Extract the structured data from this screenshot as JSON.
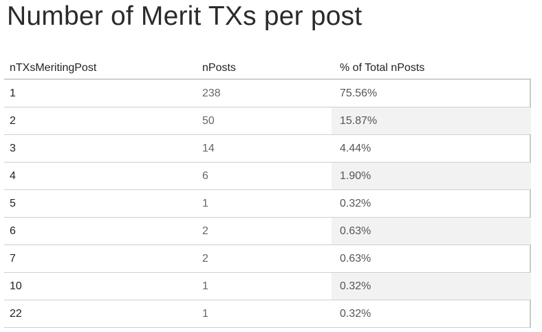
{
  "title": "Number of Merit TXs per post",
  "chart_data": {
    "type": "table",
    "title": "Number of Merit TXs per post",
    "columns": [
      "nTXsMeritingPost",
      "nPosts",
      "% of Total nPosts"
    ],
    "rows": [
      {
        "nTXsMeritingPost": "1",
        "nPosts": "238",
        "pct": "75.56%"
      },
      {
        "nTXsMeritingPost": "2",
        "nPosts": "50",
        "pct": "15.87%"
      },
      {
        "nTXsMeritingPost": "3",
        "nPosts": "14",
        "pct": "4.44%"
      },
      {
        "nTXsMeritingPost": "4",
        "nPosts": "6",
        "pct": "1.90%"
      },
      {
        "nTXsMeritingPost": "5",
        "nPosts": "1",
        "pct": "0.32%"
      },
      {
        "nTXsMeritingPost": "6",
        "nPosts": "2",
        "pct": "0.63%"
      },
      {
        "nTXsMeritingPost": "7",
        "nPosts": "2",
        "pct": "0.63%"
      },
      {
        "nTXsMeritingPost": "10",
        "nPosts": "1",
        "pct": "0.32%"
      },
      {
        "nTXsMeritingPost": "22",
        "nPosts": "1",
        "pct": "0.32%"
      }
    ]
  },
  "colors": {
    "shaded_cell": "#f2f2f2",
    "gridline": "#cfcfcf"
  }
}
